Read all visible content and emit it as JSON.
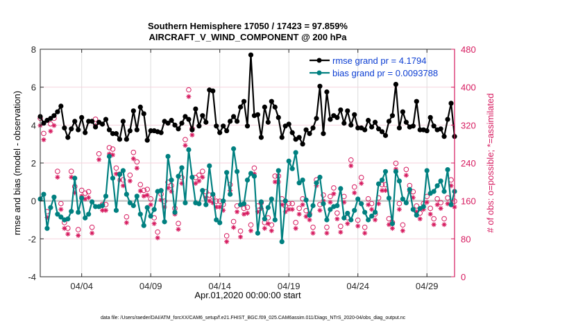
{
  "chart_data": {
    "type": "line",
    "title": "Southern Hemisphere 17050 / 17423 = 97.859%",
    "subtitle": "AIRCRAFT_V_WIND_COMPONENT @ 200 hPa",
    "xlabel": "Apr.01,2020 00:00:00 start",
    "ylabel": "rmse and bias (model - observation)",
    "ylabel_right": "# of obs: o=possible; *=assimilated",
    "footnote": "data file: /Users/raeder/DAI/ATM_forcXX/CAM6_setup/f.e21.FHIST_BGC.f09_025.CAM6assim.011/Diags_NTrS_2020-04/obs_diag_output.nc",
    "xlim": [
      1.0,
      31.0
    ],
    "ylim": [
      -4,
      8
    ],
    "ylim_right": [
      0,
      480
    ],
    "x_ticks": [
      {
        "x": 4,
        "label": "04/04"
      },
      {
        "x": 9,
        "label": "04/09"
      },
      {
        "x": 14,
        "label": "04/14"
      },
      {
        "x": 19,
        "label": "04/19"
      },
      {
        "x": 24,
        "label": "04/24"
      },
      {
        "x": 29,
        "label": "04/29"
      }
    ],
    "y_ticks": [
      "-4",
      "-2",
      "0",
      "2",
      "4",
      "6",
      "8"
    ],
    "y_ticks_right": [
      "0",
      "80",
      "160",
      "240",
      "320",
      "400",
      "480"
    ],
    "grid": true,
    "legend_position": "top-right",
    "x_start": 1.0,
    "x_step": 0.25,
    "series": [
      {
        "name": "rmse grand pr = 4.1794",
        "color": "#000000",
        "values": [
          4.45,
          4.1,
          4.25,
          4.35,
          4.5,
          4.7,
          5.0,
          3.85,
          3.35,
          3.8,
          4.2,
          3.75,
          4.4,
          3.6,
          4.2,
          4.2,
          3.9,
          4.15,
          4.05,
          4.3,
          3.75,
          3.55,
          3.55,
          3.25,
          4.2,
          3.25,
          3.7,
          4.75,
          3.75,
          4.95,
          4.6,
          3.2,
          3.7,
          3.7,
          3.65,
          3.6,
          4.2,
          4.1,
          4.25,
          4.0,
          3.8,
          4.1,
          4.45,
          4.3,
          3.75,
          4.85,
          3.95,
          4.5,
          4.15,
          5.85,
          5.8,
          3.95,
          3.6,
          3.95,
          3.7,
          4.2,
          4.45,
          4.2,
          4.95,
          5.25,
          3.95,
          7.7,
          4.5,
          4.55,
          3.35,
          4.95,
          4.15,
          5.25,
          4.95,
          4.4,
          3.35,
          3.95,
          4.05,
          3.6,
          3.25,
          3.35,
          3.0,
          3.75,
          3.55,
          3.85,
          4.35,
          6.05,
          3.55,
          5.75,
          4.3,
          4.5,
          4.4,
          4.8,
          4.1,
          4.75,
          4.0,
          4.55,
          3.85,
          3.85,
          3.75,
          4.25,
          3.9,
          4.15,
          3.8,
          3.65,
          3.45,
          4.2,
          4.5,
          6.15,
          3.85,
          4.7,
          4.15,
          3.9,
          3.95,
          5.25,
          3.75,
          3.75,
          3.7,
          4.4,
          3.95,
          3.75,
          3.8,
          3.4,
          4.3,
          5.15,
          3.4,
          3.4,
          4.3,
          3.85,
          4.15,
          3.55,
          3.4,
          4.6,
          4.45
        ]
      },
      {
        "name": "bias grand pr = 0.0093788",
        "color": "#008080",
        "values": [
          0.1,
          0.35,
          -1.45,
          -0.35,
          0.2,
          -0.7,
          -0.85,
          -1.0,
          -0.95,
          -0.55,
          1.2,
          -0.6,
          0.15,
          -0.9,
          -0.7,
          -0.05,
          -0.3,
          -0.3,
          -0.25,
          0.25,
          2.35,
          1.2,
          -0.5,
          1.4,
          1.6,
          0.35,
          -0.1,
          -0.25,
          0.25,
          -0.7,
          -1.3,
          -0.35,
          -0.8,
          -0.45,
          0.5,
          0.55,
          -1.1,
          2.35,
          1.1,
          -0.6,
          1.3,
          1.75,
          -0.1,
          2.7,
          1.25,
          -0.1,
          -0.15,
          0.55,
          -0.2,
          1.85,
          0.35,
          -1.0,
          -1.15,
          0.0,
          1.5,
          0.35,
          2.75,
          1.55,
          -0.2,
          -0.15,
          1.1,
          1.45,
          1.3,
          -1.7,
          -0.05,
          -0.95,
          -0.35,
          0.1,
          -1.0,
          1.6,
          -2.15,
          0.0,
          2.1,
          1.7,
          2.55,
          0.95,
          1.1,
          0.05,
          -0.75,
          -0.25,
          0.95,
          1.25,
          -0.15,
          -1.0,
          -0.45,
          -0.3,
          -0.25,
          0.65,
          -0.9,
          -0.65,
          -1.0,
          -0.5,
          0.1,
          -0.15,
          -0.6,
          -1.0,
          -0.8,
          -0.6,
          0.9,
          1.1,
          1.55,
          0.15,
          -1.2,
          1.55,
          1.05,
          0.1,
          -0.1,
          0.6,
          -0.45,
          -0.75,
          -0.4,
          -0.3,
          1.6,
          0.4,
          0.5,
          0.8,
          1.05,
          0.5,
          1.65,
          -0.2,
          0.5,
          -0.15,
          0.05,
          0.75,
          -0.4,
          -0.85,
          -0.35,
          -0.1,
          -1.4,
          1.4,
          1.4,
          0.8,
          -0.1,
          -0.15,
          -0.55,
          1.35,
          0.45,
          -1.05,
          0.8,
          0.1,
          -0.15,
          -0.4,
          0.0,
          0.5,
          0.05,
          -0.35,
          0.25,
          0.7,
          -0.5,
          -1.25,
          0.85,
          0.45,
          0.85,
          0.0,
          -0.2,
          -0.75,
          0.8,
          -1.0,
          -1.95,
          -1.9
        ]
      },
      {
        "name": "obs possible",
        "color": "#d6195e",
        "values": [
          330,
          298,
          133,
          318,
          330,
          218,
          150,
          110,
          98,
          218,
          186,
          95,
          178,
          172,
          175,
          100,
          328,
          255,
          148,
          148,
          268,
          265,
          225,
          212,
          200,
          122,
          210,
          258,
          238,
          190,
          178,
          180,
          160,
          120,
          90,
          170,
          155,
          195,
          188,
          140,
          108,
          205,
          285,
          390,
          308,
          205,
          210,
          218,
          175,
          168,
          164,
          155,
          155,
          148,
          82,
          190,
          112,
          145,
          92,
          140,
          142,
          105,
          225,
          145,
          152,
          110,
          120,
          105,
          208,
          208,
          160,
          145,
          150,
          150,
          110,
          140,
          160,
          135,
          128,
          100,
          200,
          148,
          168,
          100,
          165,
          183,
          130,
          102,
          165,
          120,
          242,
          185,
          115,
          205,
          100,
          160,
          150,
          128,
          162,
          190,
          190,
          118,
          110,
          235,
          150,
          105,
          222,
          188,
          175,
          145,
          130,
          150,
          165,
          140,
          118,
          160,
          152,
          118,
          162,
          200,
          155,
          160,
          140,
          210,
          175,
          200,
          80,
          160,
          80,
          0
        ]
      },
      {
        "name": "obs assimilated",
        "color": "#d6195e",
        "values": [
          322,
          292,
          128,
          310,
          322,
          213,
          145,
          105,
          93,
          213,
          180,
          90,
          173,
          167,
          170,
          95,
          322,
          250,
          143,
          143,
          262,
          260,
          220,
          207,
          195,
          117,
          205,
          252,
          232,
          184,
          173,
          175,
          155,
          115,
          85,
          165,
          150,
          190,
          183,
          135,
          103,
          200,
          280,
          383,
          302,
          200,
          205,
          213,
          170,
          163,
          159,
          150,
          150,
          143,
          77,
          185,
          107,
          140,
          87,
          135,
          137,
          100,
          220,
          140,
          147,
          105,
          115,
          100,
          203,
          203,
          155,
          140,
          145,
          145,
          105,
          135,
          155,
          130,
          123,
          95,
          195,
          143,
          163,
          95,
          160,
          178,
          125,
          97,
          160,
          115,
          237,
          180,
          110,
          200,
          95,
          155,
          145,
          123,
          157,
          185,
          185,
          113,
          105,
          230,
          145,
          100,
          217,
          183,
          170,
          140,
          125,
          145,
          160,
          135,
          113,
          155,
          147,
          113,
          157,
          195,
          150,
          155,
          135,
          205,
          170,
          195,
          75,
          155,
          75,
          0
        ]
      }
    ]
  }
}
